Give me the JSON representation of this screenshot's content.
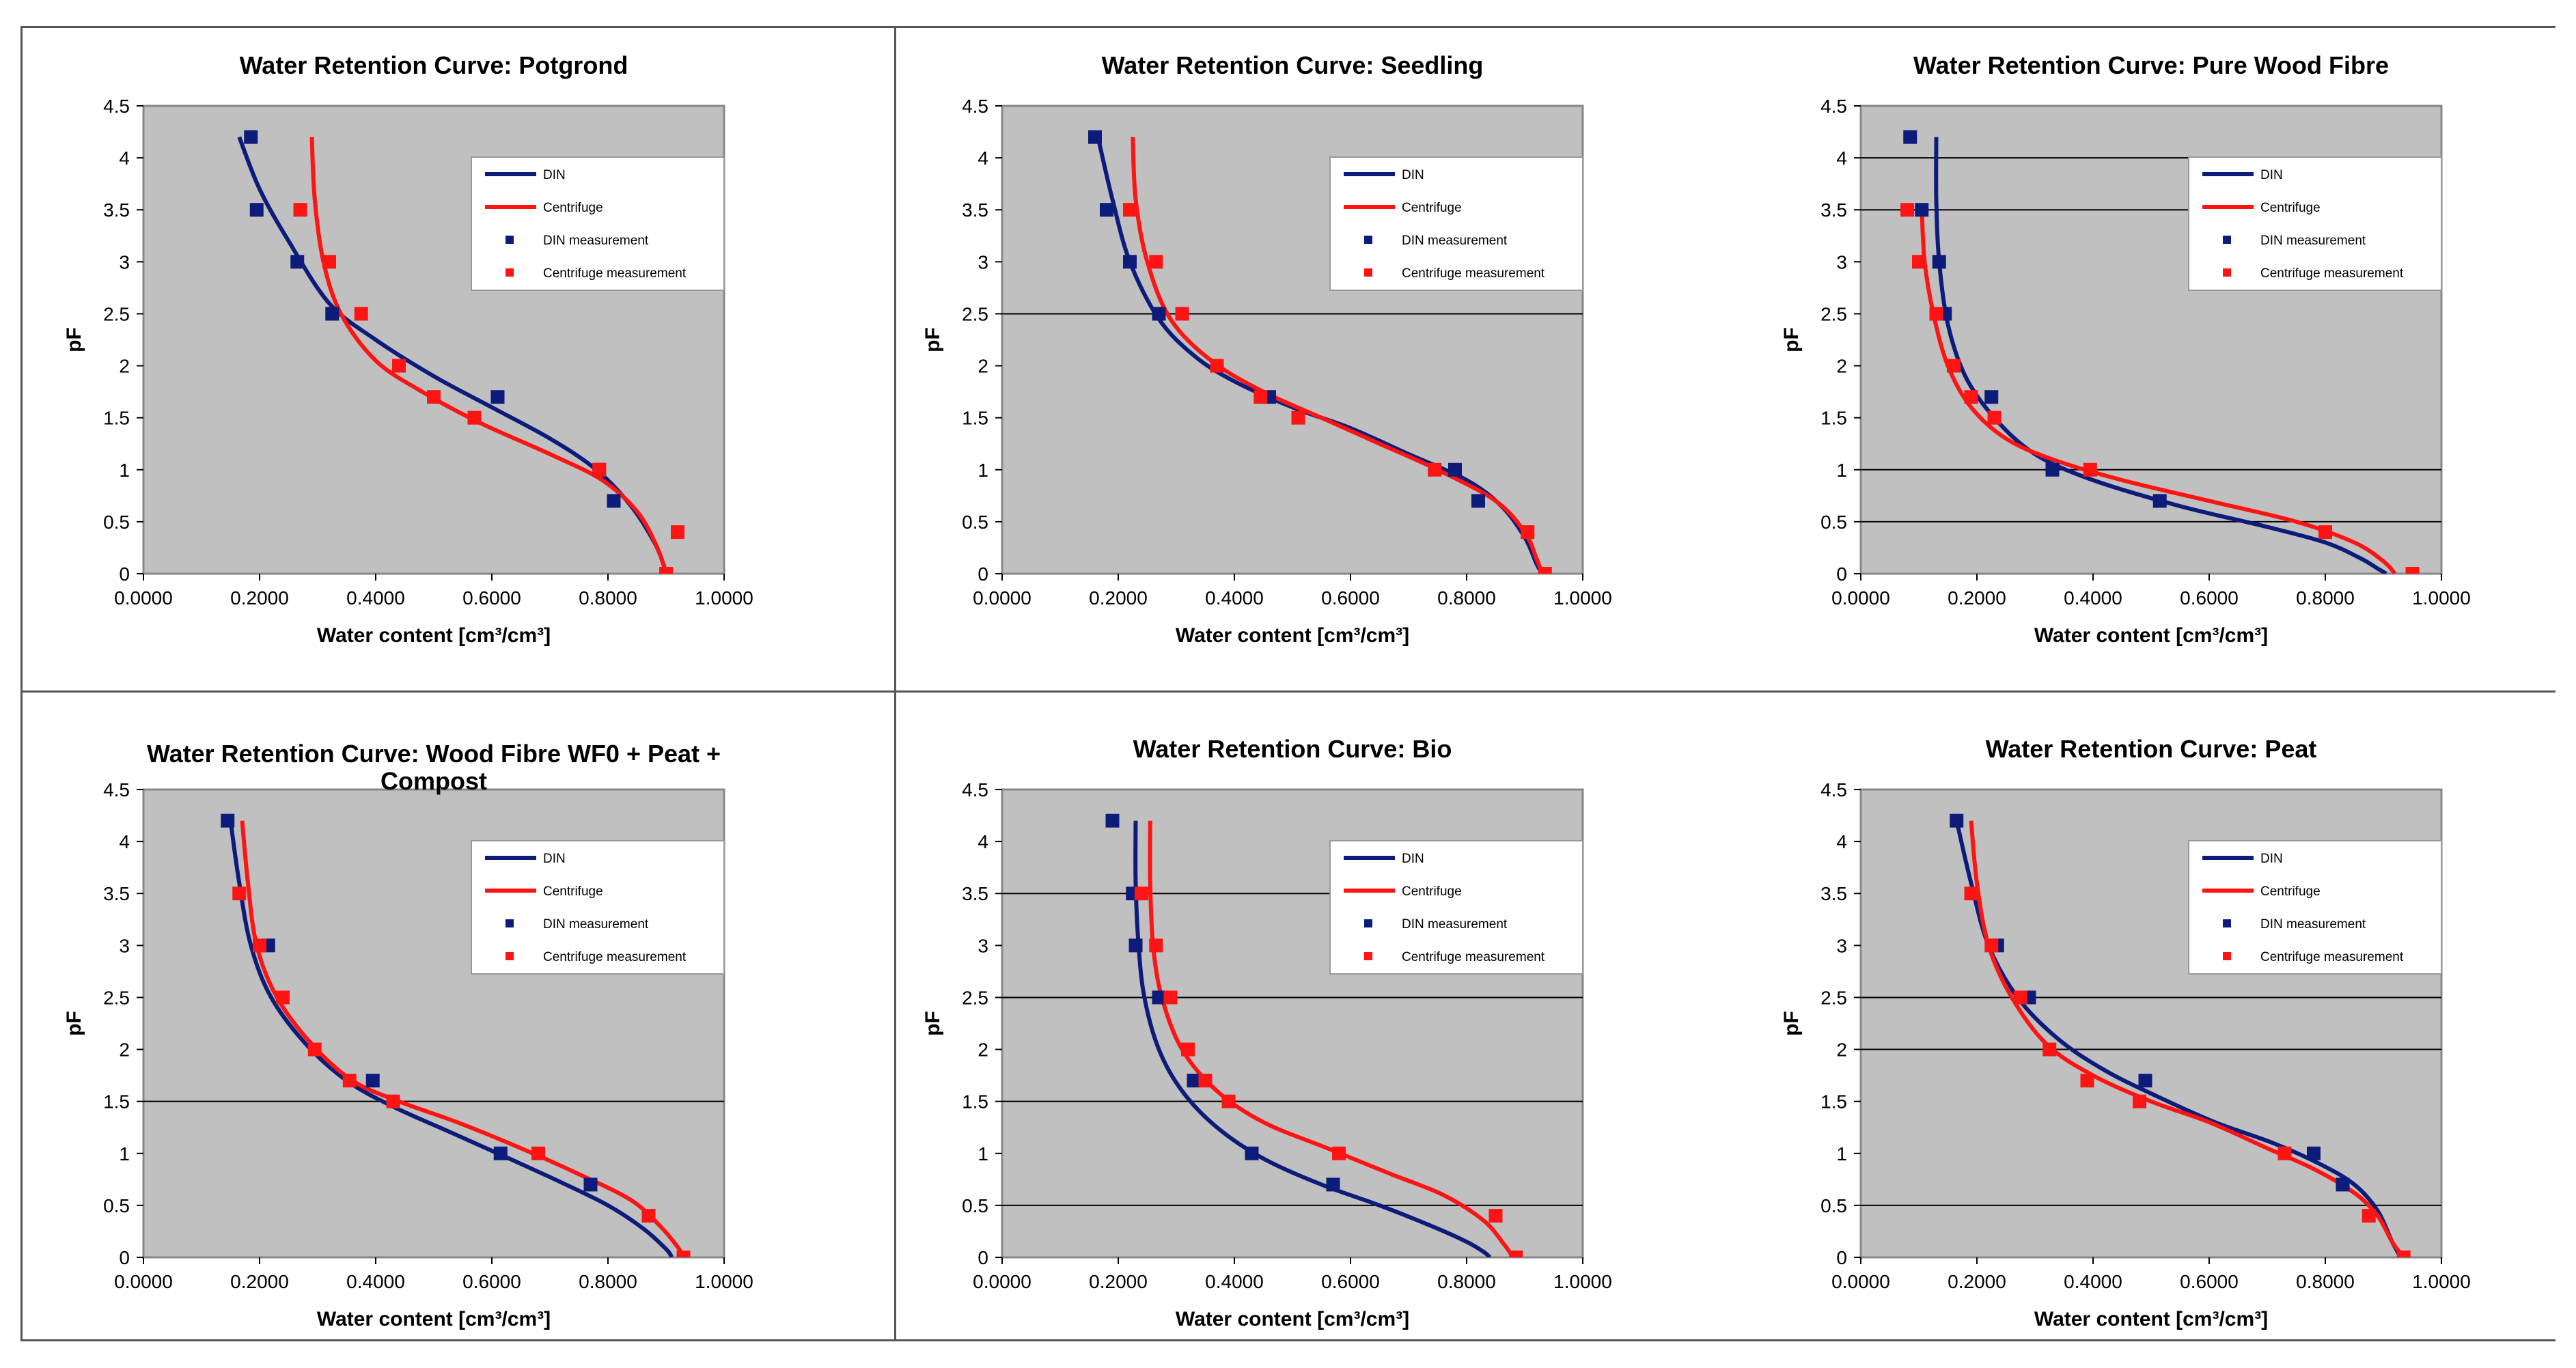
{
  "colors": {
    "din": "#0d1c7a",
    "centrifuge": "#ff1414",
    "plot_bg": "#c0c0c0",
    "gridline": "#000000",
    "frame": "#888888"
  },
  "legend_labels": [
    "DIN",
    "Centrifuge",
    "DIN measurement",
    "Centrifuge measurement"
  ],
  "chart_data": [
    {
      "type": "scatter",
      "title": "Water Retention Curve: Potgrond",
      "xlabel": "Water content [cm³/cm³]",
      "ylabel": "pF",
      "xlim": [
        0,
        1
      ],
      "ylim": [
        0,
        4.5
      ],
      "x_tick_labels": [
        "0.0000",
        "0.2000",
        "0.4000",
        "0.6000",
        "0.8000",
        "1.0000"
      ],
      "y_tick_labels": [
        "0",
        "0.5",
        "1",
        "1.5",
        "2",
        "2.5",
        "3",
        "3.5",
        "4",
        "4.5"
      ],
      "gridlines_y": [],
      "series": [
        {
          "name": "DIN",
          "kind": "line",
          "x": [
            0.165,
            0.2,
            0.25,
            0.32,
            0.4,
            0.5,
            0.6,
            0.7,
            0.78,
            0.84,
            0.88,
            0.895,
            0.9
          ],
          "y": [
            4.2,
            3.7,
            3.2,
            2.6,
            2.25,
            1.9,
            1.6,
            1.3,
            1.0,
            0.65,
            0.3,
            0.1,
            0.0
          ]
        },
        {
          "name": "Centrifuge",
          "kind": "line",
          "x": [
            0.29,
            0.295,
            0.31,
            0.34,
            0.4,
            0.48,
            0.58,
            0.7,
            0.79,
            0.85,
            0.885,
            0.9
          ],
          "y": [
            4.2,
            3.6,
            3.0,
            2.5,
            2.05,
            1.75,
            1.45,
            1.15,
            0.9,
            0.6,
            0.25,
            0.0
          ]
        },
        {
          "name": "DIN measurement",
          "kind": "points",
          "x": [
            0.185,
            0.195,
            0.265,
            0.325,
            0.61,
            0.785,
            0.81
          ],
          "y": [
            4.2,
            3.5,
            3.0,
            2.5,
            1.7,
            1.0,
            0.7
          ]
        },
        {
          "name": "Centrifuge measurement",
          "kind": "points",
          "x": [
            0.27,
            0.32,
            0.375,
            0.44,
            0.5,
            0.57,
            0.785,
            0.9,
            0.92
          ],
          "y": [
            3.5,
            3.0,
            2.5,
            2.0,
            1.7,
            1.5,
            1.0,
            0.0,
            0.4
          ]
        }
      ]
    },
    {
      "type": "scatter",
      "title": "Water Retention Curve: Seedling",
      "xlabel": "Water content [cm³/cm³]",
      "ylabel": "pF",
      "xlim": [
        0,
        1
      ],
      "ylim": [
        0,
        4.5
      ],
      "x_tick_labels": [
        "0.0000",
        "0.2000",
        "0.4000",
        "0.6000",
        "0.8000",
        "1.0000"
      ],
      "y_tick_labels": [
        "0",
        "0.5",
        "1",
        "1.5",
        "2",
        "2.5",
        "3",
        "3.5",
        "4",
        "4.5"
      ],
      "gridlines_y": [
        2.5
      ],
      "series": [
        {
          "name": "DIN",
          "kind": "line",
          "x": [
            0.165,
            0.19,
            0.22,
            0.27,
            0.33,
            0.4,
            0.5,
            0.6,
            0.7,
            0.8,
            0.86,
            0.9,
            0.92,
            0.93
          ],
          "y": [
            4.2,
            3.6,
            3.0,
            2.45,
            2.1,
            1.85,
            1.6,
            1.4,
            1.15,
            0.9,
            0.65,
            0.35,
            0.1,
            0.0
          ]
        },
        {
          "name": "Centrifuge",
          "kind": "line",
          "x": [
            0.225,
            0.23,
            0.25,
            0.29,
            0.36,
            0.45,
            0.55,
            0.65,
            0.75,
            0.85,
            0.9,
            0.92,
            0.93
          ],
          "y": [
            4.2,
            3.6,
            3.0,
            2.45,
            2.05,
            1.75,
            1.5,
            1.25,
            1.0,
            0.7,
            0.4,
            0.15,
            0.0
          ]
        },
        {
          "name": "DIN measurement",
          "kind": "points",
          "x": [
            0.16,
            0.18,
            0.22,
            0.27,
            0.46,
            0.78,
            0.82
          ],
          "y": [
            4.2,
            3.5,
            3.0,
            2.5,
            1.7,
            1.0,
            0.7
          ]
        },
        {
          "name": "Centrifuge measurement",
          "kind": "points",
          "x": [
            0.22,
            0.265,
            0.31,
            0.37,
            0.445,
            0.51,
            0.745,
            0.905,
            0.935
          ],
          "y": [
            3.5,
            3.0,
            2.5,
            2.0,
            1.7,
            1.5,
            1.0,
            0.4,
            0.0
          ]
        }
      ]
    },
    {
      "type": "scatter",
      "title": "Water Retention Curve: Pure Wood Fibre",
      "xlabel": "Water content [cm³/cm³]",
      "ylabel": "pF",
      "xlim": [
        0,
        1
      ],
      "ylim": [
        0,
        4.5
      ],
      "x_tick_labels": [
        "0.0000",
        "0.2000",
        "0.4000",
        "0.6000",
        "0.8000",
        "1.0000"
      ],
      "y_tick_labels": [
        "0",
        "0.5",
        "1",
        "1.5",
        "2",
        "2.5",
        "3",
        "3.5",
        "4",
        "4.5"
      ],
      "gridlines_y": [
        0.5,
        1,
        3.5,
        4
      ],
      "series": [
        {
          "name": "DIN",
          "kind": "line",
          "x": [
            0.13,
            0.13,
            0.135,
            0.15,
            0.18,
            0.23,
            0.3,
            0.4,
            0.55,
            0.7,
            0.8,
            0.86,
            0.89,
            0.905
          ],
          "y": [
            4.2,
            3.6,
            3.0,
            2.4,
            1.9,
            1.5,
            1.15,
            0.9,
            0.65,
            0.45,
            0.3,
            0.15,
            0.05,
            0.0
          ]
        },
        {
          "name": "Centrifuge",
          "kind": "line",
          "x": [
            0.105,
            0.11,
            0.125,
            0.15,
            0.19,
            0.25,
            0.33,
            0.45,
            0.6,
            0.75,
            0.85,
            0.9,
            0.92
          ],
          "y": [
            3.5,
            3.0,
            2.5,
            2.0,
            1.6,
            1.3,
            1.1,
            0.9,
            0.7,
            0.5,
            0.3,
            0.12,
            0.0
          ]
        },
        {
          "name": "DIN measurement",
          "kind": "points",
          "x": [
            0.085,
            0.105,
            0.135,
            0.145,
            0.225,
            0.33,
            0.515
          ],
          "y": [
            4.2,
            3.5,
            3.0,
            2.5,
            1.7,
            1.0,
            0.7
          ]
        },
        {
          "name": "Centrifuge measurement",
          "kind": "points",
          "x": [
            0.08,
            0.1,
            0.13,
            0.16,
            0.19,
            0.23,
            0.395,
            0.8,
            0.95
          ],
          "y": [
            3.5,
            3.0,
            2.5,
            2.0,
            1.7,
            1.5,
            1.0,
            0.4,
            0.0
          ]
        }
      ]
    },
    {
      "type": "scatter",
      "title_lines": [
        "Water Retention Curve: Wood Fibre WF0 + Peat +",
        "Compost"
      ],
      "xlabel": "Water content [cm³/cm³]",
      "ylabel": "pF",
      "xlim": [
        0,
        1
      ],
      "ylim": [
        0,
        4.5
      ],
      "x_tick_labels": [
        "0.0000",
        "0.2000",
        "0.4000",
        "0.6000",
        "0.8000",
        "1.0000"
      ],
      "y_tick_labels": [
        "0",
        "0.5",
        "1",
        "1.5",
        "2",
        "2.5",
        "3",
        "3.5",
        "4",
        "4.5"
      ],
      "gridlines_y": [
        1.5
      ],
      "series": [
        {
          "name": "DIN",
          "kind": "line",
          "x": [
            0.15,
            0.165,
            0.185,
            0.22,
            0.28,
            0.35,
            0.43,
            0.53,
            0.63,
            0.72,
            0.8,
            0.86,
            0.9,
            0.91
          ],
          "y": [
            4.2,
            3.6,
            3.0,
            2.5,
            2.05,
            1.7,
            1.45,
            1.2,
            0.95,
            0.72,
            0.5,
            0.28,
            0.08,
            0.0
          ]
        },
        {
          "name": "Centrifuge",
          "kind": "line",
          "x": [
            0.17,
            0.18,
            0.195,
            0.23,
            0.29,
            0.36,
            0.44,
            0.54,
            0.65,
            0.75,
            0.84,
            0.89,
            0.92,
            0.93
          ],
          "y": [
            4.2,
            3.6,
            3.0,
            2.5,
            2.05,
            1.7,
            1.5,
            1.3,
            1.05,
            0.8,
            0.55,
            0.3,
            0.1,
            0.0
          ]
        },
        {
          "name": "DIN measurement",
          "kind": "points",
          "x": [
            0.145,
            0.215,
            0.395,
            0.615,
            0.77
          ],
          "y": [
            4.2,
            3.0,
            1.7,
            1.0,
            0.7
          ]
        },
        {
          "name": "Centrifuge measurement",
          "kind": "points",
          "x": [
            0.165,
            0.2,
            0.24,
            0.295,
            0.355,
            0.43,
            0.68,
            0.87,
            0.93
          ],
          "y": [
            3.5,
            3.0,
            2.5,
            2.0,
            1.7,
            1.5,
            1.0,
            0.4,
            0.0
          ]
        }
      ]
    },
    {
      "type": "scatter",
      "title": "Water Retention Curve: Bio",
      "xlabel": "Water content [cm³/cm³]",
      "ylabel": "pF",
      "xlim": [
        0,
        1
      ],
      "ylim": [
        0,
        4.5
      ],
      "x_tick_labels": [
        "0.0000",
        "0.2000",
        "0.4000",
        "0.6000",
        "0.8000",
        "1.0000"
      ],
      "y_tick_labels": [
        "0",
        "0.5",
        "1",
        "1.5",
        "2",
        "2.5",
        "3",
        "3.5",
        "4",
        "4.5"
      ],
      "gridlines_y": [
        0.5,
        1.5,
        2.5,
        3.5
      ],
      "series": [
        {
          "name": "DIN",
          "kind": "line",
          "x": [
            0.23,
            0.23,
            0.235,
            0.245,
            0.27,
            0.31,
            0.37,
            0.45,
            0.55,
            0.65,
            0.74,
            0.8,
            0.83,
            0.84
          ],
          "y": [
            4.2,
            3.6,
            3.0,
            2.5,
            2.0,
            1.6,
            1.25,
            0.95,
            0.7,
            0.5,
            0.3,
            0.15,
            0.05,
            0.0
          ]
        },
        {
          "name": "Centrifuge",
          "kind": "line",
          "x": [
            0.255,
            0.255,
            0.26,
            0.275,
            0.31,
            0.37,
            0.45,
            0.56,
            0.67,
            0.76,
            0.83,
            0.865,
            0.88
          ],
          "y": [
            4.2,
            3.6,
            3.0,
            2.5,
            2.0,
            1.6,
            1.3,
            1.05,
            0.8,
            0.6,
            0.35,
            0.12,
            0.0
          ]
        },
        {
          "name": "DIN measurement",
          "kind": "points",
          "x": [
            0.19,
            0.225,
            0.23,
            0.27,
            0.33,
            0.43,
            0.57
          ],
          "y": [
            4.2,
            3.5,
            3.0,
            2.5,
            1.7,
            1.0,
            0.7
          ]
        },
        {
          "name": "Centrifuge measurement",
          "kind": "points",
          "x": [
            0.24,
            0.265,
            0.29,
            0.32,
            0.35,
            0.39,
            0.58,
            0.85,
            0.885
          ],
          "y": [
            3.5,
            3.0,
            2.5,
            2.0,
            1.7,
            1.5,
            1.0,
            0.4,
            0.0
          ]
        }
      ]
    },
    {
      "type": "scatter",
      "title": "Water Retention Curve: Peat",
      "xlabel": "Water content [cm³/cm³]",
      "ylabel": "pF",
      "xlim": [
        0,
        1
      ],
      "ylim": [
        0,
        4.5
      ],
      "x_tick_labels": [
        "0.0000",
        "0.2000",
        "0.4000",
        "0.6000",
        "0.8000",
        "1.0000"
      ],
      "y_tick_labels": [
        "0",
        "0.5",
        "1",
        "1.5",
        "2",
        "2.5",
        "3",
        "3.5",
        "4",
        "4.5"
      ],
      "gridlines_y": [
        0.5,
        2,
        2.5
      ],
      "series": [
        {
          "name": "DIN",
          "kind": "line",
          "x": [
            0.165,
            0.19,
            0.22,
            0.27,
            0.34,
            0.42,
            0.51,
            0.61,
            0.71,
            0.79,
            0.85,
            0.89,
            0.915,
            0.93
          ],
          "y": [
            4.2,
            3.6,
            3.0,
            2.5,
            2.1,
            1.8,
            1.55,
            1.3,
            1.1,
            0.9,
            0.7,
            0.45,
            0.15,
            0.0
          ]
        },
        {
          "name": "Centrifuge",
          "kind": "line",
          "x": [
            0.19,
            0.2,
            0.22,
            0.26,
            0.32,
            0.4,
            0.5,
            0.6,
            0.7,
            0.78,
            0.85,
            0.89,
            0.915,
            0.935
          ],
          "y": [
            4.2,
            3.6,
            3.0,
            2.5,
            2.05,
            1.75,
            1.5,
            1.3,
            1.05,
            0.85,
            0.62,
            0.4,
            0.15,
            0.0
          ]
        },
        {
          "name": "DIN measurement",
          "kind": "points",
          "x": [
            0.165,
            0.235,
            0.29,
            0.49,
            0.78,
            0.83
          ],
          "y": [
            4.2,
            3.0,
            2.5,
            1.7,
            1.0,
            0.7
          ]
        },
        {
          "name": "Centrifuge measurement",
          "kind": "points",
          "x": [
            0.19,
            0.225,
            0.275,
            0.325,
            0.39,
            0.48,
            0.73,
            0.875,
            0.935
          ],
          "y": [
            3.5,
            3.0,
            2.5,
            2.0,
            1.7,
            1.5,
            1.0,
            0.4,
            0.0
          ]
        }
      ]
    }
  ]
}
